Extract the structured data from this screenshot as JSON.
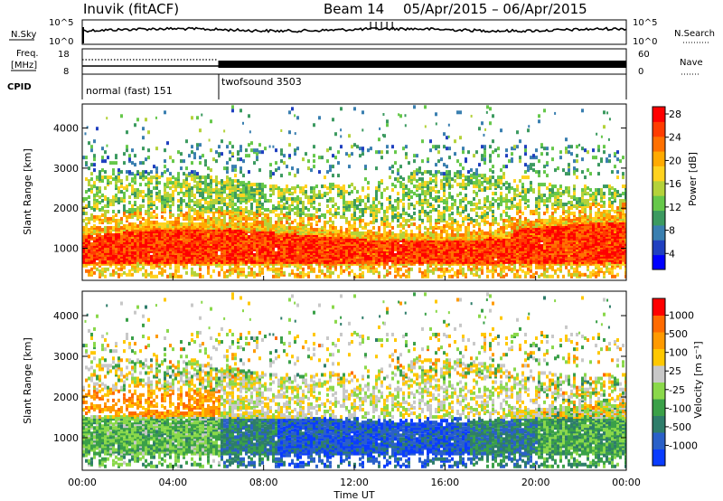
{
  "header": {
    "station": "Inuvik (fitACF)",
    "beam": "Beam 14",
    "date_range": "05/Apr/2015 – 06/Apr/2015"
  },
  "top_panels": {
    "nsky": {
      "label": "N.Sky",
      "ticks": [
        "10^5",
        "10^0"
      ],
      "right_label": "N.Search",
      "right_ticks": [
        "10^5",
        "10^0"
      ]
    },
    "freq": {
      "label_line1": "Freq.",
      "label_line2": "[MHz]",
      "ticks": [
        "18",
        "8"
      ],
      "right_label": "Nave",
      "right_ticks": [
        "60",
        "0"
      ]
    },
    "cpid": {
      "label": "CPID",
      "segments": [
        {
          "name": "normal (fast) 151",
          "start_hour": 0,
          "end_hour": 6
        },
        {
          "name": "twofsound 3503",
          "start_hour": 6,
          "end_hour": 24
        }
      ]
    }
  },
  "axes": {
    "x_ticks": [
      "00:00",
      "04:00",
      "08:00",
      "12:00",
      "16:00",
      "20:00",
      "00:00"
    ],
    "x_title": "Time UT",
    "y_title": "Slant Range [km]",
    "y_ticks": [
      "1000",
      "2000",
      "3000",
      "4000"
    ]
  },
  "chart_data": [
    {
      "type": "heatmap",
      "name": "power-panel",
      "xlim_hours": [
        0,
        24
      ],
      "ylim_km": [
        200,
        4600
      ],
      "colorbar": {
        "title": "Power [dB]",
        "ticks": [
          "4",
          "8",
          "12",
          "16",
          "20",
          "24",
          "28"
        ],
        "colors": [
          "#0000ff",
          "#2040c0",
          "#3a7fb0",
          "#3c9a60",
          "#66c84a",
          "#b4d23a",
          "#ffd21e",
          "#ffaa00",
          "#ff7000",
          "#ff3c00",
          "#ff0000"
        ]
      },
      "bands": [
        {
          "from_km": 550,
          "to_km": 1450,
          "db": 27
        },
        {
          "from_km": 1450,
          "to_km": 1900,
          "db": 18
        },
        {
          "from_km": 1900,
          "to_km": 2700,
          "db": 14
        },
        {
          "from_km": 2700,
          "to_km": 3500,
          "db": 10
        }
      ]
    },
    {
      "type": "heatmap",
      "name": "velocity-panel",
      "xlim_hours": [
        0,
        24
      ],
      "ylim_km": [
        200,
        4600
      ],
      "colorbar": {
        "title": "Velocity [m s⁻¹]",
        "ticks": [
          "1000",
          "500",
          "100",
          "25",
          "-25",
          "-100",
          "-500",
          "-1000"
        ],
        "colors": [
          "#0a3cff",
          "#2a60c8",
          "#2e7d6a",
          "#3aa048",
          "#8ad84a",
          "#c8c8c8",
          "#ffc800",
          "#ff9a00",
          "#ff6a00",
          "#ff0000"
        ]
      }
    }
  ]
}
